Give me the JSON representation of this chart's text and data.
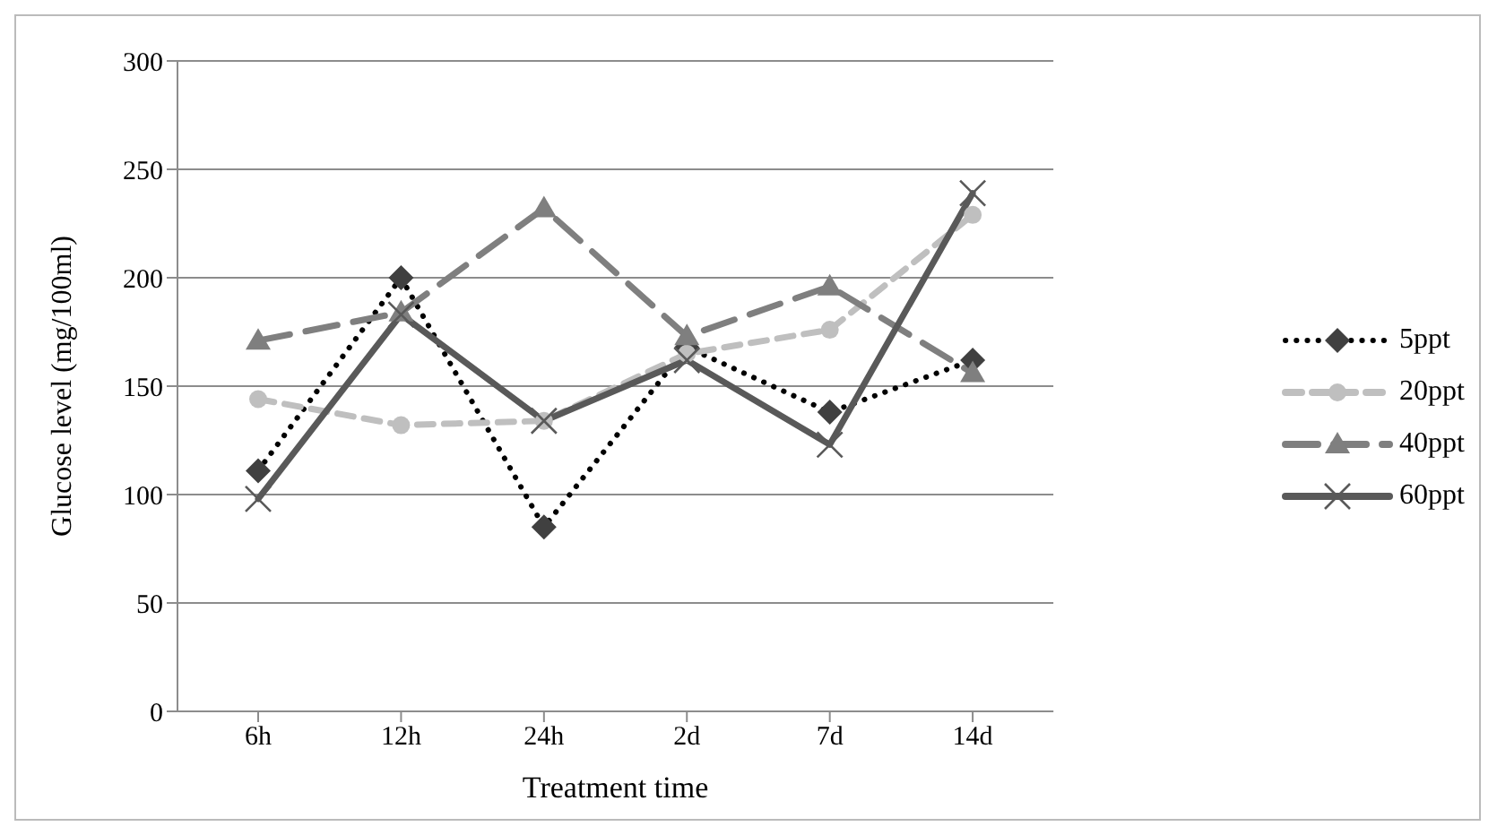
{
  "chart_data": {
    "type": "line",
    "xlabel": "Treatment time",
    "ylabel": "Glucose level (mg/100ml)",
    "categories": [
      "6h",
      "12h",
      "24h",
      "2d",
      "7d",
      "14d"
    ],
    "series": [
      {
        "name": "5ppt",
        "color": "#404040",
        "values": [
          111,
          200,
          85,
          168,
          138,
          162
        ],
        "marker": "diamond",
        "line_style": "dotted"
      },
      {
        "name": "20ppt",
        "color": "#bfbfbf",
        "values": [
          144,
          132,
          134,
          165,
          176,
          229
        ],
        "marker": "circle",
        "line_style": "dashed"
      },
      {
        "name": "40ppt",
        "color": "#7f7f7f",
        "values": [
          171,
          184,
          232,
          173,
          196,
          156
        ],
        "marker": "triangle",
        "line_style": "dashed"
      },
      {
        "name": "60ppt",
        "color": "#595959",
        "values": [
          98,
          183,
          134,
          162,
          123,
          239
        ],
        "marker": "cross",
        "line_style": "solid"
      }
    ],
    "ylim": [
      0,
      300
    ],
    "yticks": [
      0,
      50,
      100,
      150,
      200,
      250,
      300
    ],
    "grid": "y",
    "legend": "right"
  }
}
